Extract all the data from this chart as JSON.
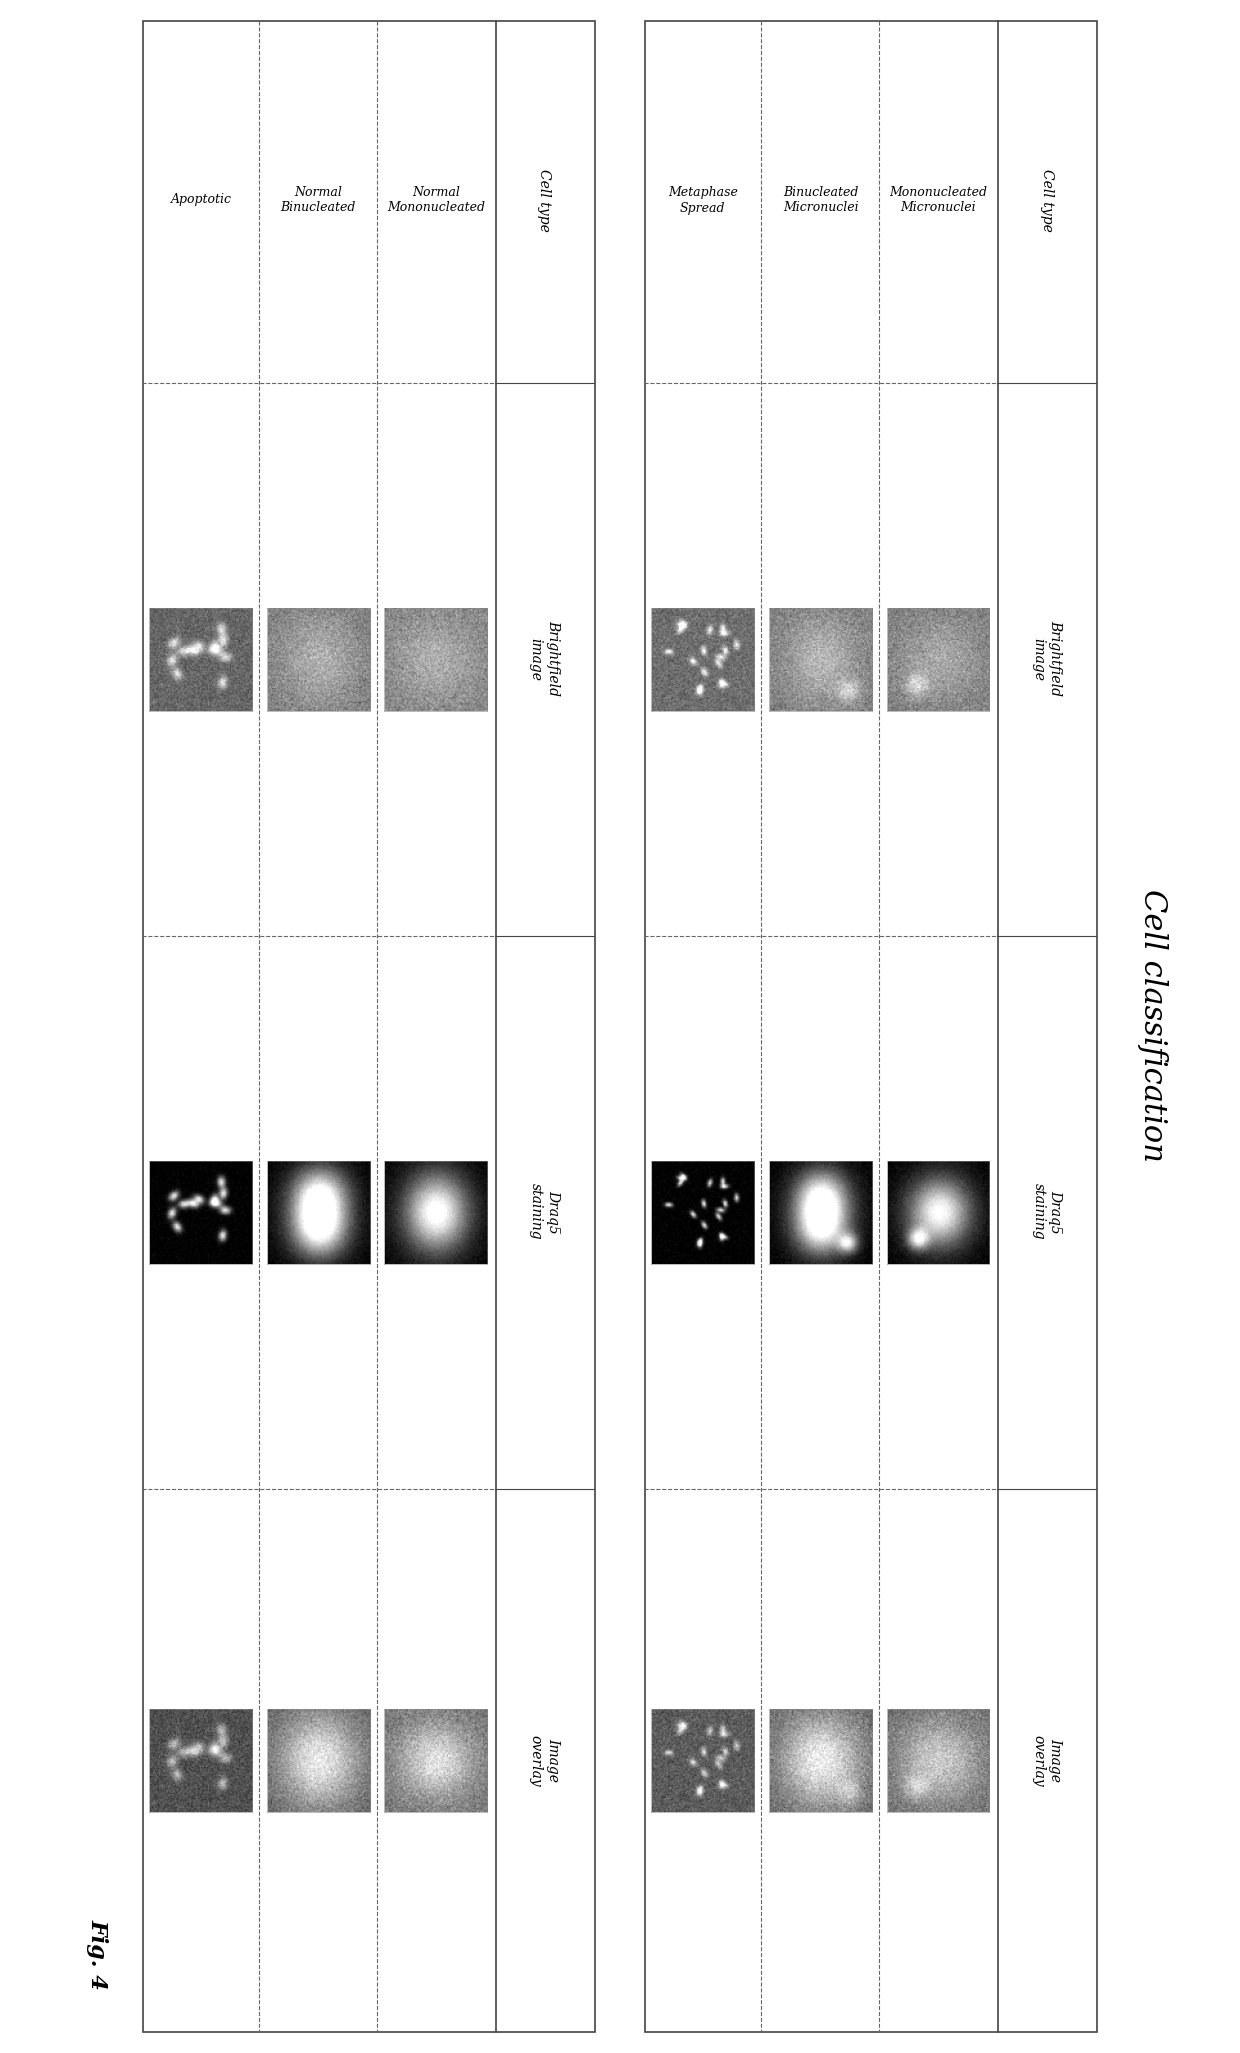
{
  "title": "Cell classification",
  "fig_label": "Fig. 4",
  "background_color": "#ffffff",
  "top_table": {
    "col_headers": [
      "Cell type",
      "Brightfield\nimage",
      "Draq5\nstaining",
      "Image\noverlay"
    ],
    "rows": [
      "Mononucleated\nMicronuclei",
      "Binucleated\nMicronuclei",
      "Metaphase\nSpread"
    ]
  },
  "bottom_table": {
    "col_headers": [
      "Cell type",
      "Brightfield\nimage",
      "Draq5\nstaining",
      "Image\noverlay"
    ],
    "rows": [
      "Normal\nMononucleated",
      "Normal\nBinucleated",
      "Apoptotic"
    ]
  },
  "title_fontsize": 22,
  "header_fontsize": 10,
  "label_fontsize": 9,
  "figlabel_fontsize": 16
}
